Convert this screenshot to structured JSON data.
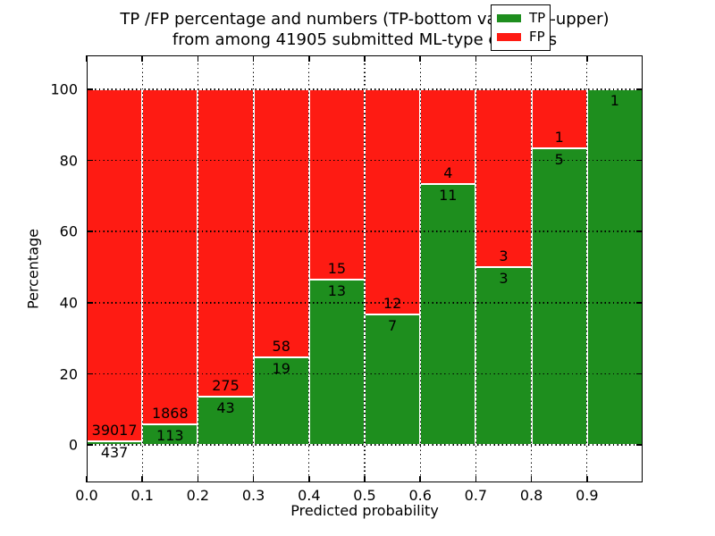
{
  "title": {
    "line1": "TP /FP percentage and numbers (TP-bottom value, FP-upper)",
    "line2": "from among 41905 submitted ML-type contacts"
  },
  "colors": {
    "tp": "#1e8e1e",
    "fp": "#fe1b13",
    "grid": "#000000",
    "background": "#ffffff"
  },
  "legend": {
    "items": [
      {
        "label": "TP",
        "color": "#1e8e1e"
      },
      {
        "label": "FP",
        "color": "#fe1b13"
      }
    ]
  },
  "chart_data": {
    "type": "bar",
    "stacked": true,
    "normalized": "each bin scaled to 100%",
    "title": "TP /FP percentage and numbers (TP-bottom value, FP-upper) from among 41905 submitted ML-type contacts",
    "xlabel": "Predicted probability",
    "ylabel": "Percentage",
    "total_submitted_contacts": 41905,
    "xlim": [
      0.0,
      1.0
    ],
    "ylim": [
      -10.5,
      109.5
    ],
    "grid": "dotted black, drawn above bars",
    "legend_position": "upper right",
    "xticks": [
      {
        "v": 0.0,
        "label": "0.0"
      },
      {
        "v": 0.1,
        "label": "0.1"
      },
      {
        "v": 0.2,
        "label": "0.2"
      },
      {
        "v": 0.3,
        "label": "0.3"
      },
      {
        "v": 0.4,
        "label": "0.4"
      },
      {
        "v": 0.5,
        "label": "0.5"
      },
      {
        "v": 0.6,
        "label": "0.6"
      },
      {
        "v": 0.7,
        "label": "0.7"
      },
      {
        "v": 0.8,
        "label": "0.8"
      },
      {
        "v": 0.9,
        "label": "0.9"
      }
    ],
    "yticks": [
      {
        "v": 0,
        "label": "0"
      },
      {
        "v": 20,
        "label": "20"
      },
      {
        "v": 40,
        "label": "40"
      },
      {
        "v": 60,
        "label": "60"
      },
      {
        "v": 80,
        "label": "80"
      },
      {
        "v": 100,
        "label": "100"
      }
    ],
    "bars": [
      {
        "x0": 0.0,
        "x1": 0.1,
        "tp": 437,
        "fp": 39017,
        "tp_pct": 1.1
      },
      {
        "x0": 0.1,
        "x1": 0.2,
        "tp": 113,
        "fp": 1868,
        "tp_pct": 5.7
      },
      {
        "x0": 0.2,
        "x1": 0.3,
        "tp": 43,
        "fp": 275,
        "tp_pct": 13.5
      },
      {
        "x0": 0.3,
        "x1": 0.4,
        "tp": 19,
        "fp": 58,
        "tp_pct": 24.7
      },
      {
        "x0": 0.4,
        "x1": 0.5,
        "tp": 13,
        "fp": 15,
        "tp_pct": 46.4
      },
      {
        "x0": 0.5,
        "x1": 0.6,
        "tp": 7,
        "fp": 12,
        "tp_pct": 36.8
      },
      {
        "x0": 0.6,
        "x1": 0.7,
        "tp": 11,
        "fp": 4,
        "tp_pct": 73.3
      },
      {
        "x0": 0.7,
        "x1": 0.8,
        "tp": 3,
        "fp": 3,
        "tp_pct": 50.0
      },
      {
        "x0": 0.8,
        "x1": 0.9,
        "tp": 5,
        "fp": 1,
        "tp_pct": 83.3
      },
      {
        "x0": 0.9,
        "x1": 1.0,
        "tp": 1,
        "fp": 0,
        "tp_pct": 100.0
      }
    ]
  }
}
